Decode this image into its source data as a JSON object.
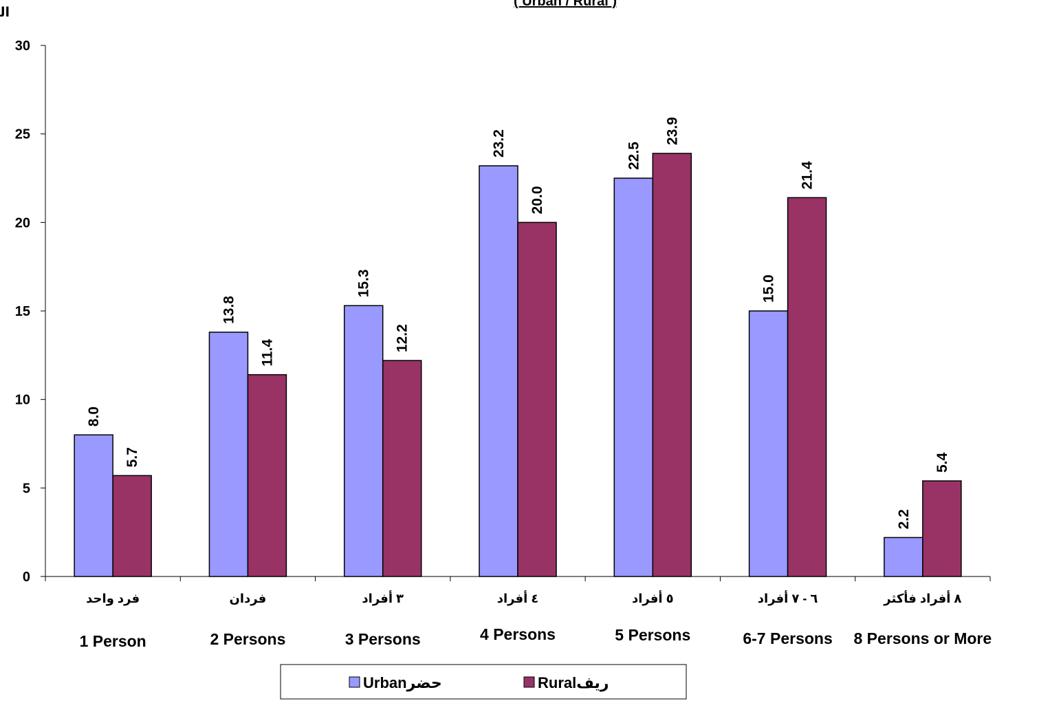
{
  "chart_data": {
    "type": "bar",
    "title": "( Urban / Rural )",
    "ylabel": "النسبة %",
    "xlabel": "",
    "ylim": [
      0,
      30
    ],
    "yticks": [
      0,
      5,
      10,
      15,
      20,
      25,
      30
    ],
    "grid": false,
    "legend_position": "bottom",
    "categories_ar": [
      "فرد واحد",
      "فردان",
      "٣ أفراد",
      "٤ أفراد",
      "٥ أفراد",
      "٦ - ٧ أفراد",
      "٨ أفراد فأكثر"
    ],
    "categories": [
      "1 Person",
      "2 Persons",
      "3 Persons",
      "4 Persons",
      "5 Persons",
      "6-7 Persons",
      "8 Persons or More"
    ],
    "series": [
      {
        "name": "Urban",
        "name_ar": "حضر",
        "color": "#9999FF",
        "values": [
          8.0,
          13.8,
          15.3,
          23.2,
          22.5,
          15.0,
          2.2
        ]
      },
      {
        "name": "Rural",
        "name_ar": "ريف",
        "color": "#993366",
        "values": [
          5.7,
          11.4,
          12.2,
          20.0,
          23.9,
          21.4,
          5.4
        ]
      }
    ]
  }
}
